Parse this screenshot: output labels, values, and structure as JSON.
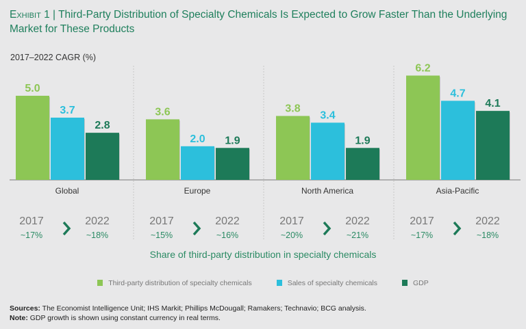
{
  "title": {
    "exhibit": "Exhibit 1",
    "separator": "|",
    "text": "Third-Party Distribution of Specialty Chemicals Is Expected to Grow Faster Than the Underlying Market for These Products"
  },
  "chart_data": {
    "type": "bar",
    "title": "Third-Party Distribution of Specialty Chemicals Is Expected to Grow Faster Than the Underlying Market for These Products",
    "ylabel": "2017–2022 CAGR (%)",
    "ylim": [
      0,
      6.5
    ],
    "categories": [
      "Global",
      "Europe",
      "North America",
      "Asia-Pacific"
    ],
    "series": [
      {
        "name": "Third-party distribution of specialty chemicals",
        "color": "#8dc655",
        "values": [
          5.0,
          3.6,
          3.8,
          6.2
        ],
        "labels": [
          "5.0",
          "3.6",
          "3.8",
          "6.2"
        ]
      },
      {
        "name": "Sales of specialty chemicals",
        "color": "#2cbfdc",
        "values": [
          3.7,
          2.0,
          3.4,
          4.7
        ],
        "labels": [
          "3.7",
          "2.0",
          "3.4",
          "4.7"
        ]
      },
      {
        "name": "GDP",
        "color": "#1d7a58",
        "values": [
          2.8,
          1.9,
          1.9,
          4.1
        ],
        "labels": [
          "2.8",
          "1.9",
          "1.9",
          "4.1"
        ]
      }
    ],
    "share": {
      "label": "Share of third-party distribution in specialty chemicals",
      "from_year": "2017",
      "to_year": "2022",
      "from": [
        "~17%",
        "~15%",
        "~20%",
        "~17%"
      ],
      "to": [
        "~18%",
        "~16%",
        "~21%",
        "~18%"
      ]
    },
    "legend_position": "bottom"
  },
  "notes": {
    "sources_label": "Sources:",
    "sources": "The Economist Intelligence Unit; IHS Markit; Phillips McDougall; Ramakers; Technavio; BCG analysis.",
    "note_label": "Note:",
    "note": "GDP growth is shown using constant currency in real terms."
  }
}
